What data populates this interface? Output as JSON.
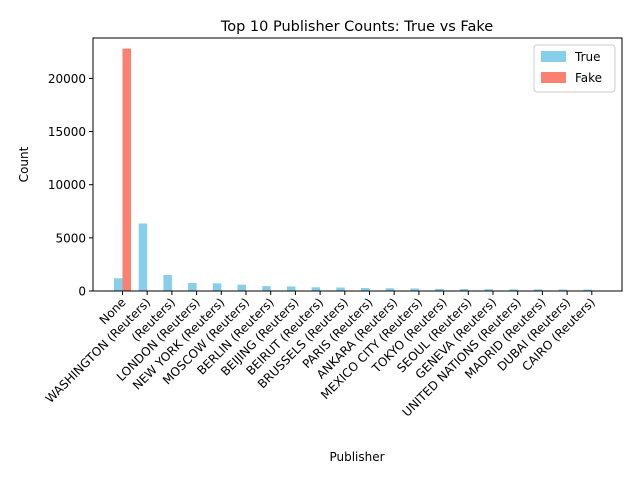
{
  "chart_data": {
    "type": "bar",
    "title": "Top 10 Publisher Counts: True vs Fake",
    "xlabel": "Publisher",
    "ylabel": "Count",
    "ylim": [
      0,
      23800
    ],
    "yticks": [
      0,
      5000,
      10000,
      15000,
      20000
    ],
    "grid": false,
    "legend_position": "top-right",
    "categories": [
      "None",
      "WASHINGTON (Reuters)",
      "(Reuters)",
      "LONDON (Reuters)",
      "NEW YORK (Reuters)",
      "MOSCOW (Reuters)",
      "BERLIN (Reuters)",
      "BEIJING (Reuters)",
      "BEIRUT (Reuters)",
      "BRUSSELS (Reuters)",
      "PARIS (Reuters)",
      "ANKARA (Reuters)",
      "MEXICO CITY (Reuters)",
      "TOKYO (Reuters)",
      "SEOUL (Reuters)",
      "GENEVA (Reuters)",
      "UNITED NATIONS (Reuters)",
      "MADRID (Reuters)",
      "DUBAI (Reuters)",
      "CAIRO (Reuters)"
    ],
    "series": [
      {
        "name": "True",
        "color": "#87ceeb",
        "values": [
          1200,
          6350,
          1500,
          750,
          720,
          600,
          460,
          430,
          350,
          330,
          280,
          260,
          240,
          200,
          190,
          170,
          160,
          150,
          140,
          130
        ]
      },
      {
        "name": "Fake",
        "color": "#fa8072",
        "values": [
          22800,
          0,
          0,
          0,
          0,
          0,
          0,
          0,
          0,
          0,
          0,
          0,
          0,
          0,
          0,
          0,
          0,
          0,
          0,
          0
        ]
      }
    ]
  }
}
